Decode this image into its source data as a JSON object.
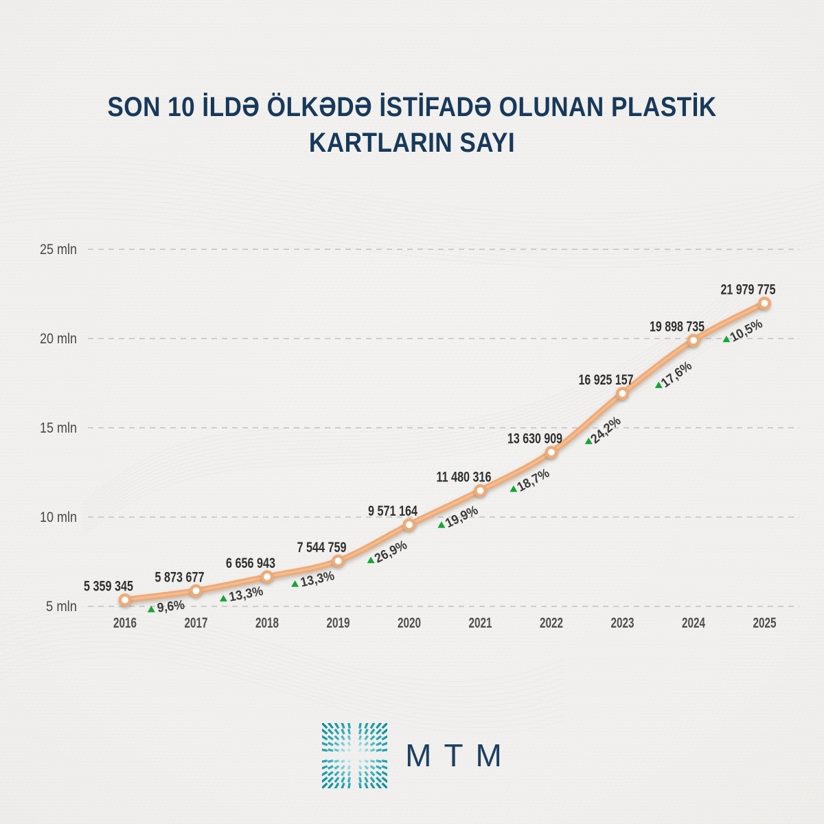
{
  "title": {
    "line1": "SON 10 İLDƏ ÖLKƏDƏ İSTİFADƏ OLUNAN PLASTİK",
    "line2": "KARTLARIN SAYI"
  },
  "chart_data": {
    "type": "line",
    "title": "SON 10 İLDƏ ÖLKƏDƏ İSTİFADƏ OLUNAN PLASTİK KARTLARIN SAYI",
    "categories": [
      "2016",
      "2017",
      "2018",
      "2019",
      "2020",
      "2021",
      "2022",
      "2023",
      "2024",
      "2025"
    ],
    "values": [
      5359345,
      5873677,
      6656943,
      7544759,
      9571164,
      11480316,
      13630909,
      16925157,
      19898735,
      21979775
    ],
    "value_labels": [
      "5 359 345",
      "5 873 677",
      "6 656 943",
      "7 544 759",
      "9 571 164",
      "11 480 316",
      "13 630 909",
      "16 925 157",
      "19 898 735",
      "21 979 775"
    ],
    "growth_labels": [
      "9,6%",
      "13,3%",
      "13,3%",
      "26,9%",
      "19,9%",
      "18,7%",
      "24,2%",
      "17,6%",
      "10,5%"
    ],
    "y_ticks": [
      {
        "value": 5000000,
        "label": "5 mln"
      },
      {
        "value": 10000000,
        "label": "10 mln"
      },
      {
        "value": 15000000,
        "label": "15 mln"
      },
      {
        "value": 20000000,
        "label": "20 mln"
      },
      {
        "value": 25000000,
        "label": "25 mln"
      }
    ],
    "ylim": [
      5000000,
      25000000
    ],
    "grid": "horizontal-dashed",
    "legend": "none",
    "xlabel": "",
    "ylabel": "",
    "colors": {
      "line": "#eeab79",
      "line_highlight": "#f6c398",
      "marker_fill": "#ffffff",
      "marker_stroke": "#eeab79",
      "growth_arrow": "#14a438",
      "growth_text": "#3a3a3a",
      "value_text": "#2f2f2f",
      "year_text": "#4f4f4f",
      "tick_text": "#474747",
      "grid_line": "#c9c8c5",
      "title_text": "#17395b"
    }
  },
  "footer": {
    "logo_text": "MTM",
    "logo_colors": {
      "mark_outer": "#0b8c9d",
      "mark_mid": "#2fadbb",
      "mark_inner": "#9adde3",
      "mark_center": "#eaf8f9",
      "text": "#1d3f61"
    }
  },
  "background": {
    "color": "#f1f0ee"
  }
}
